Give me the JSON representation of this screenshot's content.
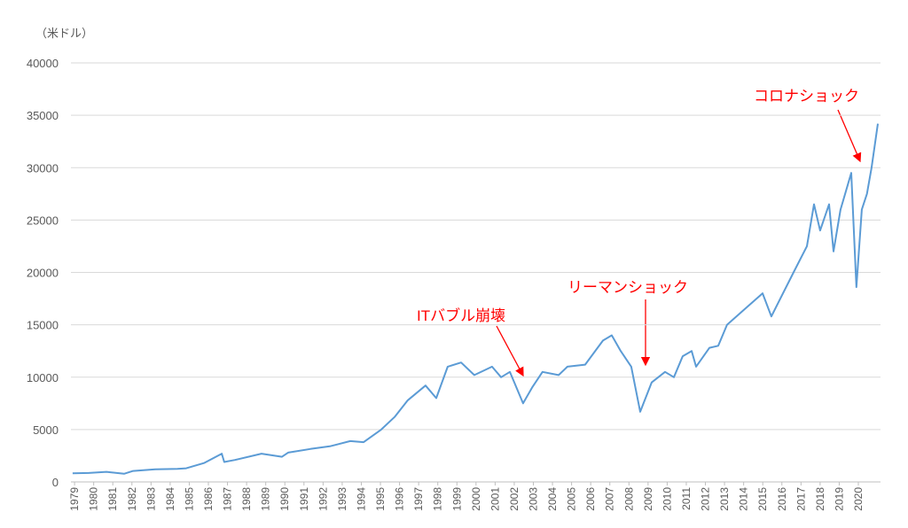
{
  "chart_data": {
    "type": "line",
    "y_label": "（米ドル）",
    "annotations": [
      "ITバブル崩壊",
      "リーマンショック",
      "コロナショック"
    ],
    "x": [
      1978.9,
      1979.74,
      1980.67,
      1981.59,
      1982.06,
      1983.22,
      1984.38,
      1984.84,
      1985.77,
      1986.7,
      1986.83,
      1987.39,
      1988.78,
      1989.85,
      1990.17,
      1991.33,
      1992.35,
      1993.42,
      1994.12,
      1995.04,
      1995.74,
      1996.43,
      1997.36,
      1997.92,
      1998.52,
      1999.22,
      1999.91,
      2000.84,
      2001.31,
      2001.77,
      2002.46,
      2002.93,
      2003.48,
      2004.32,
      2004.78,
      2005.71,
      2006.64,
      2007.1,
      2007.57,
      2008.12,
      2008.59,
      2009.19,
      2009.89,
      2010.35,
      2010.81,
      2011.28,
      2011.51,
      2012.21,
      2012.67,
      2013.13,
      2014.06,
      2014.99,
      2015.45,
      2015.92,
      2016.61,
      2017.31,
      2017.68,
      2018.0,
      2018.47,
      2018.7,
      2019.07,
      2019.63,
      2019.9,
      2020.18,
      2020.45,
      2020.69,
      2021.02
    ],
    "series": [
      {
        "color": "#5b9bd5",
        "values": [
          820,
          850,
          960,
          780,
          1050,
          1200,
          1250,
          1300,
          1800,
          2700,
          1900,
          2100,
          2700,
          2400,
          2800,
          3150,
          3400,
          3900,
          3800,
          5000,
          6200,
          7800,
          9200,
          8000,
          11000,
          11400,
          10200,
          11000,
          10000,
          10500,
          7500,
          9000,
          10500,
          10200,
          11000,
          11200,
          13500,
          14000,
          12500,
          11000,
          6700,
          9500,
          10500,
          10000,
          12000,
          12500,
          11000,
          12800,
          13000,
          15000,
          16500,
          18000,
          15800,
          17500,
          20000,
          22500,
          26500,
          24000,
          26500,
          22000,
          26000,
          29500,
          18600,
          26000,
          27500,
          30000,
          34200
        ]
      }
    ],
    "xlim": [
      1978.81,
      2021.16
    ],
    "xticks": [
      1979,
      1980,
      1981,
      1982,
      1983,
      1984,
      1985,
      1986,
      1987,
      1988,
      1989,
      1990,
      1991,
      1992,
      1993,
      1994,
      1995,
      1996,
      1997,
      1998,
      1999,
      2000,
      2001,
      2002,
      2003,
      2004,
      2005,
      2006,
      2007,
      2008,
      2009,
      2010,
      2011,
      2012,
      2013,
      2014,
      2015,
      2016,
      2017,
      2018,
      2019,
      2020
    ],
    "ylim": [
      0,
      40000
    ],
    "yticks": [
      0,
      5000,
      10000,
      15000,
      20000,
      25000,
      30000,
      35000,
      40000
    ],
    "grid": true
  }
}
